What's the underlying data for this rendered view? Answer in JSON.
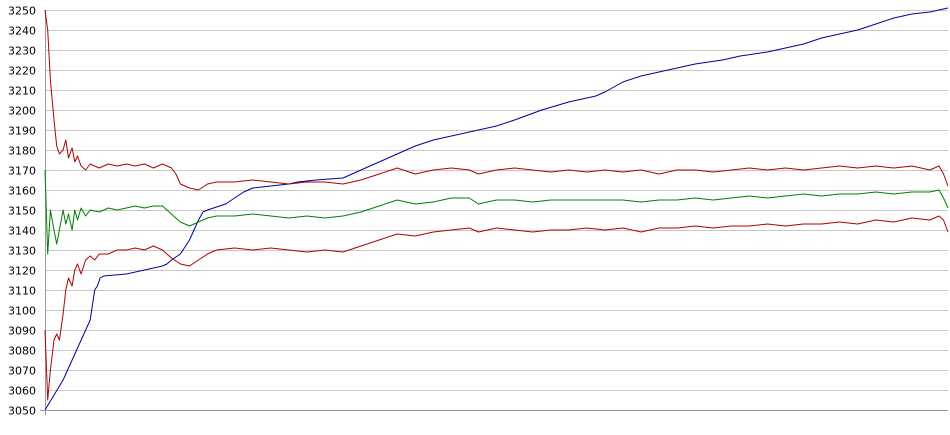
{
  "chart_data": {
    "type": "line",
    "title": "",
    "xlabel": "",
    "ylabel": "",
    "ylim": [
      3050,
      3250
    ],
    "xlim": [
      0,
      100
    ],
    "yticks": [
      3050,
      3060,
      3070,
      3080,
      3090,
      3100,
      3110,
      3120,
      3130,
      3140,
      3150,
      3160,
      3170,
      3180,
      3190,
      3200,
      3210,
      3220,
      3230,
      3240,
      3250
    ],
    "grid": "horizontal",
    "legend": "none",
    "series": [
      {
        "color": "#0000a0",
        "points": [
          [
            0,
            3050
          ],
          [
            2,
            3065
          ],
          [
            5,
            3095
          ],
          [
            5.5,
            3110
          ],
          [
            5.8,
            3112
          ],
          [
            6.1,
            3116
          ],
          [
            6.5,
            3117
          ],
          [
            9,
            3118
          ],
          [
            13,
            3122
          ],
          [
            13.5,
            3123
          ],
          [
            14,
            3125
          ],
          [
            15,
            3128
          ],
          [
            16,
            3135
          ],
          [
            17,
            3145
          ],
          [
            17.5,
            3149
          ],
          [
            18,
            3150
          ],
          [
            20,
            3153
          ],
          [
            21,
            3156
          ],
          [
            22,
            3159
          ],
          [
            23,
            3161
          ],
          [
            25,
            3162
          ],
          [
            27,
            3163
          ],
          [
            28,
            3164
          ],
          [
            30,
            3165
          ],
          [
            33,
            3166
          ],
          [
            35,
            3170
          ],
          [
            38,
            3176
          ],
          [
            41,
            3182
          ],
          [
            43,
            3185
          ],
          [
            44,
            3186
          ],
          [
            46,
            3188
          ],
          [
            48,
            3190
          ],
          [
            50,
            3192
          ],
          [
            52,
            3195
          ],
          [
            55,
            3200
          ],
          [
            58,
            3204
          ],
          [
            61,
            3207
          ],
          [
            62,
            3209
          ],
          [
            64,
            3214
          ],
          [
            66,
            3217
          ],
          [
            68,
            3219
          ],
          [
            70,
            3221
          ],
          [
            72,
            3223
          ],
          [
            75,
            3225
          ],
          [
            77,
            3227
          ],
          [
            80,
            3229
          ],
          [
            82,
            3231
          ],
          [
            84,
            3233
          ],
          [
            86,
            3236
          ],
          [
            88,
            3238
          ],
          [
            90,
            3240
          ],
          [
            92,
            3243
          ],
          [
            94,
            3246
          ],
          [
            96,
            3248
          ],
          [
            98,
            3249
          ],
          [
            100,
            3251
          ]
        ]
      },
      {
        "color": "#b00000",
        "points": [
          [
            0,
            3250
          ],
          [
            0.3,
            3240
          ],
          [
            0.6,
            3215
          ],
          [
            1,
            3195
          ],
          [
            1.3,
            3182
          ],
          [
            1.6,
            3178
          ],
          [
            2,
            3180
          ],
          [
            2.3,
            3185
          ],
          [
            2.6,
            3176
          ],
          [
            3,
            3181
          ],
          [
            3.3,
            3174
          ],
          [
            3.6,
            3177
          ],
          [
            4,
            3172
          ],
          [
            4.5,
            3170
          ],
          [
            5,
            3173
          ],
          [
            6,
            3171
          ],
          [
            7,
            3173
          ],
          [
            8,
            3172
          ],
          [
            9,
            3173
          ],
          [
            10,
            3172
          ],
          [
            11,
            3173
          ],
          [
            12,
            3171
          ],
          [
            13,
            3173
          ],
          [
            14,
            3171
          ],
          [
            14.5,
            3168
          ],
          [
            15,
            3163
          ],
          [
            16,
            3161
          ],
          [
            17,
            3160
          ],
          [
            18,
            3163
          ],
          [
            19,
            3164
          ],
          [
            21,
            3164
          ],
          [
            23,
            3165
          ],
          [
            25,
            3164
          ],
          [
            27,
            3163
          ],
          [
            29,
            3164
          ],
          [
            31,
            3164
          ],
          [
            33,
            3163
          ],
          [
            35,
            3165
          ],
          [
            37,
            3168
          ],
          [
            39,
            3171
          ],
          [
            41,
            3168
          ],
          [
            43,
            3170
          ],
          [
            45,
            3171
          ],
          [
            47,
            3170
          ],
          [
            48,
            3168
          ],
          [
            50,
            3170
          ],
          [
            52,
            3171
          ],
          [
            54,
            3170
          ],
          [
            56,
            3169
          ],
          [
            58,
            3170
          ],
          [
            60,
            3169
          ],
          [
            62,
            3170
          ],
          [
            64,
            3169
          ],
          [
            66,
            3170
          ],
          [
            68,
            3168
          ],
          [
            70,
            3170
          ],
          [
            72,
            3170
          ],
          [
            74,
            3169
          ],
          [
            76,
            3170
          ],
          [
            78,
            3171
          ],
          [
            80,
            3170
          ],
          [
            82,
            3171
          ],
          [
            84,
            3170
          ],
          [
            86,
            3171
          ],
          [
            88,
            3172
          ],
          [
            90,
            3171
          ],
          [
            92,
            3172
          ],
          [
            94,
            3171
          ],
          [
            96,
            3172
          ],
          [
            98,
            3170
          ],
          [
            99,
            3172
          ],
          [
            99.5,
            3168
          ],
          [
            100,
            3162
          ]
        ]
      },
      {
        "color": "#b00000",
        "points": [
          [
            0,
            3090
          ],
          [
            0.3,
            3055
          ],
          [
            0.6,
            3070
          ],
          [
            1,
            3085
          ],
          [
            1.3,
            3088
          ],
          [
            1.6,
            3085
          ],
          [
            2,
            3098
          ],
          [
            2.3,
            3110
          ],
          [
            2.6,
            3116
          ],
          [
            3,
            3112
          ],
          [
            3.3,
            3120
          ],
          [
            3.6,
            3123
          ],
          [
            4,
            3118
          ],
          [
            4.5,
            3125
          ],
          [
            5,
            3127
          ],
          [
            5.5,
            3125
          ],
          [
            6,
            3128
          ],
          [
            7,
            3128
          ],
          [
            8,
            3130
          ],
          [
            9,
            3130
          ],
          [
            10,
            3131
          ],
          [
            11,
            3130
          ],
          [
            12,
            3132
          ],
          [
            13,
            3130
          ],
          [
            14,
            3126
          ],
          [
            15,
            3123
          ],
          [
            16,
            3122
          ],
          [
            17,
            3125
          ],
          [
            18,
            3128
          ],
          [
            19,
            3130
          ],
          [
            21,
            3131
          ],
          [
            23,
            3130
          ],
          [
            25,
            3131
          ],
          [
            27,
            3130
          ],
          [
            29,
            3129
          ],
          [
            31,
            3130
          ],
          [
            33,
            3129
          ],
          [
            35,
            3132
          ],
          [
            37,
            3135
          ],
          [
            39,
            3138
          ],
          [
            41,
            3137
          ],
          [
            43,
            3139
          ],
          [
            45,
            3140
          ],
          [
            47,
            3141
          ],
          [
            48,
            3139
          ],
          [
            50,
            3141
          ],
          [
            52,
            3140
          ],
          [
            54,
            3139
          ],
          [
            56,
            3140
          ],
          [
            58,
            3140
          ],
          [
            60,
            3141
          ],
          [
            62,
            3140
          ],
          [
            64,
            3141
          ],
          [
            66,
            3139
          ],
          [
            68,
            3141
          ],
          [
            70,
            3141
          ],
          [
            72,
            3142
          ],
          [
            74,
            3141
          ],
          [
            76,
            3142
          ],
          [
            78,
            3142
          ],
          [
            80,
            3143
          ],
          [
            82,
            3142
          ],
          [
            84,
            3143
          ],
          [
            86,
            3143
          ],
          [
            88,
            3144
          ],
          [
            90,
            3143
          ],
          [
            92,
            3145
          ],
          [
            94,
            3144
          ],
          [
            96,
            3146
          ],
          [
            98,
            3145
          ],
          [
            99,
            3147
          ],
          [
            99.5,
            3145
          ],
          [
            100,
            3139
          ]
        ]
      },
      {
        "color": "#008000",
        "points": [
          [
            0,
            3170
          ],
          [
            0.3,
            3128
          ],
          [
            0.6,
            3150
          ],
          [
            1,
            3140
          ],
          [
            1.3,
            3133
          ],
          [
            1.6,
            3140
          ],
          [
            2,
            3150
          ],
          [
            2.3,
            3143
          ],
          [
            2.6,
            3148
          ],
          [
            3,
            3140
          ],
          [
            3.3,
            3150
          ],
          [
            3.6,
            3145
          ],
          [
            4,
            3151
          ],
          [
            4.5,
            3147
          ],
          [
            5,
            3150
          ],
          [
            6,
            3149
          ],
          [
            7,
            3151
          ],
          [
            8,
            3150
          ],
          [
            9,
            3151
          ],
          [
            10,
            3152
          ],
          [
            11,
            3151
          ],
          [
            12,
            3152
          ],
          [
            13,
            3152
          ],
          [
            14,
            3148
          ],
          [
            15,
            3144
          ],
          [
            16,
            3142
          ],
          [
            17,
            3144
          ],
          [
            18,
            3146
          ],
          [
            19,
            3147
          ],
          [
            21,
            3147
          ],
          [
            23,
            3148
          ],
          [
            25,
            3147
          ],
          [
            27,
            3146
          ],
          [
            29,
            3147
          ],
          [
            31,
            3146
          ],
          [
            33,
            3147
          ],
          [
            35,
            3149
          ],
          [
            37,
            3152
          ],
          [
            39,
            3155
          ],
          [
            41,
            3153
          ],
          [
            43,
            3154
          ],
          [
            45,
            3156
          ],
          [
            47,
            3156
          ],
          [
            48,
            3153
          ],
          [
            50,
            3155
          ],
          [
            52,
            3155
          ],
          [
            54,
            3154
          ],
          [
            56,
            3155
          ],
          [
            58,
            3155
          ],
          [
            60,
            3155
          ],
          [
            62,
            3155
          ],
          [
            64,
            3155
          ],
          [
            66,
            3154
          ],
          [
            68,
            3155
          ],
          [
            70,
            3155
          ],
          [
            72,
            3156
          ],
          [
            74,
            3155
          ],
          [
            76,
            3156
          ],
          [
            78,
            3157
          ],
          [
            80,
            3156
          ],
          [
            82,
            3157
          ],
          [
            84,
            3158
          ],
          [
            86,
            3157
          ],
          [
            88,
            3158
          ],
          [
            90,
            3158
          ],
          [
            92,
            3159
          ],
          [
            94,
            3158
          ],
          [
            96,
            3159
          ],
          [
            98,
            3159
          ],
          [
            99,
            3160
          ],
          [
            99.5,
            3156
          ],
          [
            100,
            3151
          ]
        ]
      }
    ]
  }
}
